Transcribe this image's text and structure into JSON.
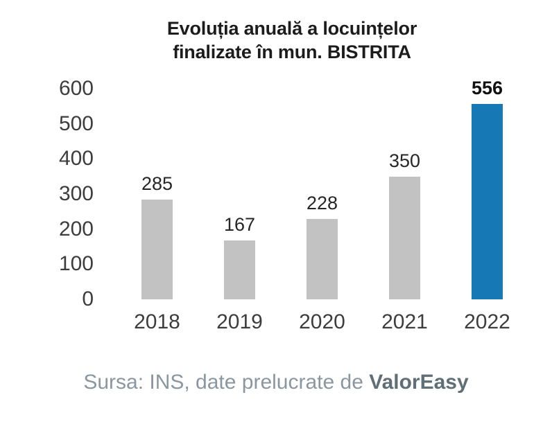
{
  "title": {
    "line1": "Evoluția anuală a locuințelor",
    "line2": "finalizate în mun. BISTRITA"
  },
  "chart_data": {
    "type": "bar",
    "title": "Evoluția anuală a locuințelor finalizate în mun. BISTRITA",
    "categories": [
      "2018",
      "2019",
      "2020",
      "2021",
      "2022"
    ],
    "values": [
      285,
      167,
      228,
      350,
      556
    ],
    "highlight_index": 4,
    "bar_color": "#c2c2c2",
    "highlight_color": "#1678b4",
    "xlabel": "",
    "ylabel": "",
    "ylim": [
      0,
      600
    ],
    "yticks": [
      0,
      100,
      200,
      300,
      400,
      500,
      600
    ],
    "grid": false,
    "legend": false
  },
  "footer": {
    "prefix": "Sursa: INS, date prelucrate de ",
    "brand": "ValorEasy"
  }
}
